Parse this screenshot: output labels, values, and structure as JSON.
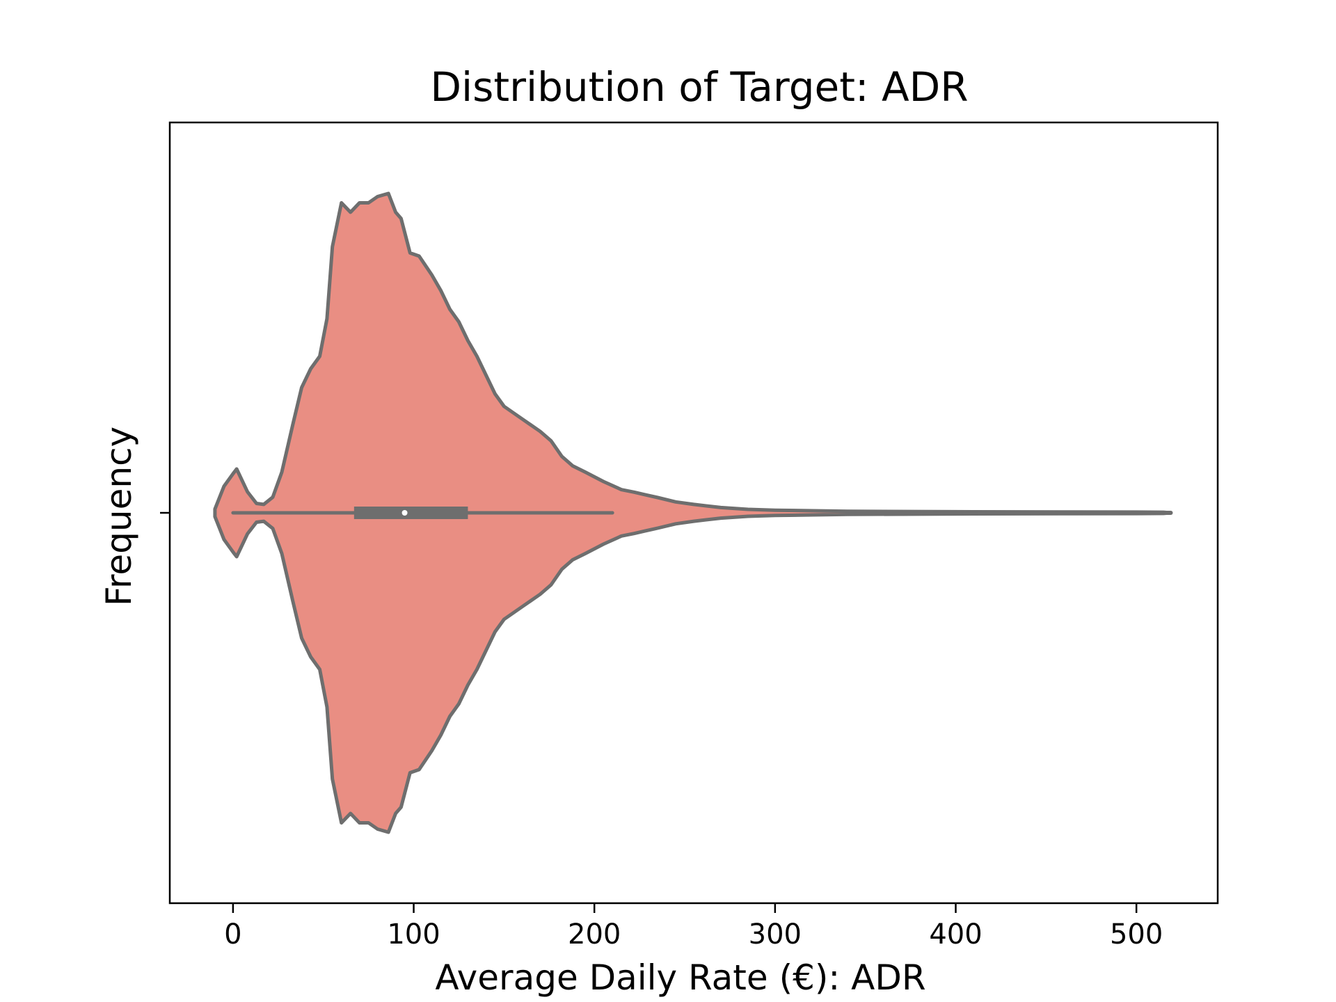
{
  "chart_data": {
    "type": "violin",
    "title": "Distribution of Target: ADR",
    "xlabel": "Average Daily Rate (€): ADR",
    "ylabel": "Frequency",
    "xlim": [
      -35,
      545
    ],
    "xticks": [
      0,
      100,
      200,
      300,
      400,
      500
    ],
    "grid": false,
    "legend": "none",
    "colors": {
      "fill": "#E98E83",
      "edge": "#6e6e6e",
      "median": "#ffffff"
    },
    "box": {
      "min": 0,
      "q1": 67,
      "median": 95,
      "q3": 130,
      "whisker_high": 210
    },
    "density": {
      "x": [
        -10,
        -5,
        0,
        2,
        8,
        13,
        17,
        22,
        27,
        33,
        38,
        43,
        48,
        52,
        55,
        60,
        65,
        70,
        75,
        80,
        86,
        90,
        93,
        98,
        103,
        110,
        115,
        120,
        125,
        130,
        135,
        140,
        145,
        150,
        160,
        170,
        176,
        182,
        188,
        195,
        205,
        215,
        222,
        228,
        235,
        245,
        255,
        270,
        285,
        300,
        340,
        400,
        460,
        500,
        515,
        519
      ],
      "width": [
        0.012,
        0.085,
        0.125,
        0.14,
        0.067,
        0.03,
        0.027,
        0.05,
        0.13,
        0.28,
        0.4,
        0.46,
        0.5,
        0.62,
        0.85,
        0.99,
        0.96,
        0.99,
        0.99,
        1.01,
        1.02,
        0.96,
        0.94,
        0.83,
        0.82,
        0.76,
        0.71,
        0.65,
        0.61,
        0.55,
        0.5,
        0.44,
        0.38,
        0.34,
        0.3,
        0.26,
        0.23,
        0.18,
        0.15,
        0.13,
        0.1,
        0.074,
        0.066,
        0.058,
        0.049,
        0.035,
        0.027,
        0.017,
        0.011,
        0.0085,
        0.005,
        0.0035,
        0.0028,
        0.0025,
        0.002,
        0.0
      ]
    }
  }
}
